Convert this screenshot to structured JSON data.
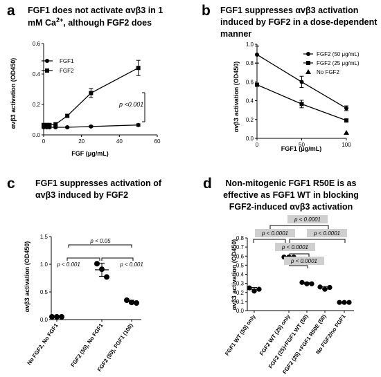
{
  "panels": {
    "a": {
      "label": "a",
      "title": [
        "FGF1 does not activate αvβ3 in 1",
        "mM Ca",
        "2+",
        ", although FGF2 does"
      ],
      "xlabel": "FGF (μg/mL)",
      "ylabel": "αvβ3 activation (OD450)",
      "annotation": "p <0.001",
      "legend": [
        "FGF1",
        "FGF2"
      ]
    },
    "b": {
      "label": "b",
      "title": [
        "FGF1 suppresses αvβ3 activation",
        "induced by FGF2 in a dose-dependent",
        "manner"
      ],
      "xlabel": "FGF1 (μg/mL)",
      "ylabel": "αvβ3 activation (OD450)",
      "legend": [
        "FGF2 (50 μg/mL)",
        "FGF2 (25 μg/mL)",
        "No FGF2"
      ]
    },
    "c": {
      "label": "c",
      "title": [
        "FGF1 suppresses activation of",
        "αvβ3 induced by FGF2"
      ],
      "ylabel": "αvβ3 activation (OD450)",
      "annotations": [
        "p < 0.05",
        "p < 0.001",
        "p < 0.001"
      ]
    },
    "d": {
      "label": "d",
      "title": [
        "Non-mitogenic FGF1 R50E is as",
        "effective as FGF1 WT in blocking",
        "FGF2-induced αvβ3 activation"
      ],
      "ylabel": "αvβ3 activation (OD450)",
      "annotations": [
        "p < 0.0001",
        "p < 0.0001",
        "p < 0.0001",
        "p < 0.0001",
        "p < 0.0001"
      ]
    }
  },
  "chart_data": [
    {
      "panel": "a",
      "type": "line",
      "xlim": [
        0,
        60
      ],
      "ylim": [
        0,
        0.6
      ],
      "xticks": [
        0,
        20,
        40,
        60
      ],
      "yticks": [
        0.0,
        0.2,
        0.4,
        0.6
      ],
      "series": [
        {
          "name": "FGF1",
          "marker": "circle",
          "x": [
            0,
            1.6,
            3.1,
            6.3,
            12.5,
            25,
            50
          ],
          "y": [
            0.05,
            0.05,
            0.05,
            0.05,
            0.05,
            0.055,
            0.065
          ],
          "err": [
            0.005,
            0.005,
            0.005,
            0.005,
            0.005,
            0.005,
            0.008
          ]
        },
        {
          "name": "FGF2",
          "marker": "square",
          "x": [
            0,
            1.6,
            3.1,
            6.3,
            12.5,
            25,
            50
          ],
          "y": [
            0.065,
            0.065,
            0.065,
            0.07,
            0.125,
            0.275,
            0.44
          ],
          "err": [
            0.01,
            0.01,
            0.01,
            0.01,
            0.01,
            0.03,
            0.05
          ]
        }
      ]
    },
    {
      "panel": "b",
      "type": "line",
      "xlim": [
        0,
        100
      ],
      "ylim": [
        0,
        1.0
      ],
      "xticks": [
        0,
        50,
        100
      ],
      "yticks": [
        0.0,
        0.2,
        0.4,
        0.6,
        0.8,
        1.0
      ],
      "series": [
        {
          "name": "FGF2 (50 μg/mL)",
          "marker": "circle",
          "x": [
            0,
            50,
            100
          ],
          "y": [
            0.89,
            0.6,
            0.32
          ],
          "err": [
            0.09,
            0.06,
            0.025
          ]
        },
        {
          "name": "FGF2 (25 μg/mL)",
          "marker": "square",
          "x": [
            0,
            50,
            100
          ],
          "y": [
            0.57,
            0.365,
            0.19
          ],
          "err": [
            0.015,
            0.04,
            0.01
          ]
        },
        {
          "name": "No FGF2",
          "marker": "triangle",
          "x": [
            100
          ],
          "y": [
            0.06
          ],
          "err": [
            0
          ]
        }
      ]
    },
    {
      "panel": "c",
      "type": "scatter",
      "ylim": [
        0,
        1.5
      ],
      "yticks": [
        0.0,
        0.5,
        1.0,
        1.5
      ],
      "categories": [
        "No FGF2, No FGF1",
        "FGF2 (50), No FGF1",
        "FGF2 (50), FGF1 (100)"
      ],
      "groups": [
        {
          "points": [
            0.05,
            0.05,
            0.05
          ],
          "mean": 0.05,
          "sd": 0.005
        },
        {
          "points": [
            1.01,
            0.91,
            0.77
          ],
          "mean": 0.9,
          "sd": 0.12
        },
        {
          "points": [
            0.35,
            0.31,
            0.3
          ],
          "mean": 0.32,
          "sd": 0.03
        }
      ]
    },
    {
      "panel": "d",
      "type": "scatter",
      "ylim": [
        0,
        0.8
      ],
      "yticks": [
        0.0,
        0.1,
        0.2,
        0.3,
        0.4,
        0.5,
        0.6,
        0.7,
        0.8
      ],
      "categories": [
        "FGF1 WT (50) only",
        "FGF2 WT (25) only",
        "FGF2 (25)+FGF1 WT (50)",
        "FGF2 (25) +FGF1 R50E (50)",
        "No FGF2/no FGF1"
      ],
      "groups": [
        {
          "points": [
            0.25,
            0.215,
            0.235
          ],
          "mean": 0.235,
          "sd": 0.02
        },
        {
          "points": [
            0.59,
            0.59,
            0.59
          ],
          "mean": 0.59,
          "sd": 0.005
        },
        {
          "points": [
            0.31,
            0.295,
            0.295
          ],
          "mean": 0.3,
          "sd": 0.01
        },
        {
          "points": [
            0.26,
            0.235,
            0.255
          ],
          "mean": 0.25,
          "sd": 0.015
        },
        {
          "points": [
            0.09,
            0.09,
            0.09
          ],
          "mean": 0.09,
          "sd": 0.003
        }
      ]
    }
  ]
}
